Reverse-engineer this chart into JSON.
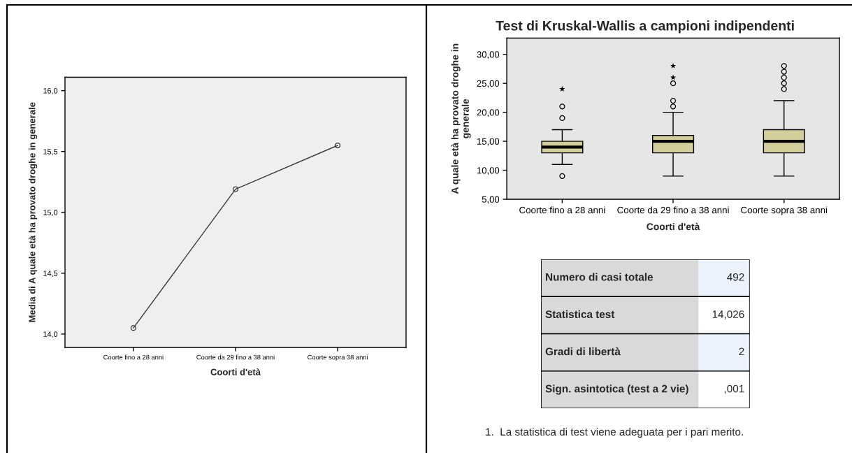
{
  "chart_data": [
    {
      "type": "line",
      "categories": [
        "Coorte fino a 28 anni",
        "Coorte da 29 fino a 38 anni",
        "Coorte sopra 38 anni"
      ],
      "series": [
        {
          "color": "#3a3a3a",
          "values": [
            14.05,
            15.19,
            15.55
          ]
        }
      ],
      "xlabel": "Coorti d'età",
      "ylabel": "Media di A quale età ha provato droghe in generale",
      "ylim": [
        13.89,
        16.11
      ],
      "yticks": [
        {
          "value": 14,
          "label": "14,0"
        },
        {
          "value": 14.5,
          "label": "14,5"
        },
        {
          "value": 15,
          "label": "15,0"
        },
        {
          "value": 15.5,
          "label": "15,5"
        },
        {
          "value": 16,
          "label": "16,0"
        }
      ],
      "marker": "circle",
      "line_style": "solid"
    },
    {
      "type": "box",
      "title": "Test di Kruskal-Wallis a campioni indipendenti",
      "categories": [
        "Coorte fino a 28 anni",
        "Coorte da 29 fino a 38 anni",
        "Coorte sopra 38 anni"
      ],
      "series": [
        {
          "type": "box",
          "color": "#d4cf9a",
          "boxes": [
            {
              "low": 11,
              "q1": 13,
              "median": 14,
              "q3": 15,
              "high": 17,
              "outliers": [
                9,
                19,
                21
              ]
            },
            {
              "low": 9,
              "q1": 13,
              "median": 15,
              "q3": 16,
              "high": 20,
              "outliers": [
                21,
                22,
                25
              ]
            },
            {
              "low": 9,
              "q1": 13,
              "median": 15,
              "q3": 17,
              "high": 22,
              "outliers": [
                24,
                25,
                26,
                27,
                28
              ]
            }
          ]
        },
        {
          "type": "scatter",
          "color": "#000000",
          "marker": "star",
          "x": [
            "Coorte fino a 28 anni",
            "Coorte da 29 fino a 38 anni",
            "Coorte da 29 fino a 38 anni"
          ],
          "values": [
            24,
            26,
            28
          ]
        }
      ],
      "xlabel": "Coorti d'età",
      "ylabel": "A quale età ha provato droghe in\ngenerale",
      "ylim": [
        5,
        32.8
      ],
      "yticks": [
        {
          "value": 5,
          "label": "5,00"
        },
        {
          "value": 10,
          "label": "10,00"
        },
        {
          "value": 15,
          "label": "15,00"
        },
        {
          "value": 20,
          "label": "20,00"
        },
        {
          "value": 25,
          "label": "25,00"
        },
        {
          "value": 30,
          "label": "30,00"
        }
      ]
    },
    {
      "type": "other",
      "categories": [
        "Numero di casi totale",
        "Statistica test",
        "Gradi di libertà",
        "Sign. asintotica (test a 2 vie)"
      ],
      "value_labels": [
        "492",
        "14,026",
        "2",
        ",001"
      ],
      "annotations": [
        "1.  La statistica di test viene adeguata per i pari merito."
      ]
    }
  ]
}
